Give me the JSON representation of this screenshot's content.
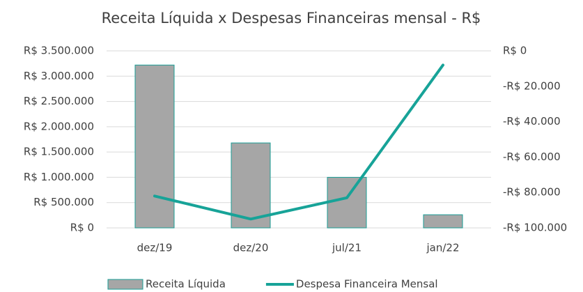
{
  "chart_data": {
    "type": "bar",
    "title": "Receita Líquida x Despesas Financeiras  mensal - R$",
    "categories": [
      "dez/19",
      "dez/20",
      "jul/21",
      "jan/22"
    ],
    "series": [
      {
        "name": "Receita Líquida",
        "type": "bar",
        "color": "#a6a6a6",
        "edgecolor": "#1a9e96",
        "values": [
          3220000,
          1680000,
          1000000,
          260000
        ]
      },
      {
        "name": "Despesa Financeira Mensal",
        "type": "line",
        "color": "#17a398",
        "axis": "y2",
        "values": [
          -82000,
          -95000,
          -83000,
          -8000
        ]
      }
    ],
    "ylim": [
      0,
      3500000
    ],
    "yticks": [
      {
        "value": 0,
        "label": "R$ 0"
      },
      {
        "value": 500000,
        "label": "R$ 500.000"
      },
      {
        "value": 1000000,
        "label": "R$ 1.000.000"
      },
      {
        "value": 1500000,
        "label": "R$ 1.500.000"
      },
      {
        "value": 2000000,
        "label": "R$ 2.000.000"
      },
      {
        "value": 2500000,
        "label": "R$ 2.500.000"
      },
      {
        "value": 3000000,
        "label": "R$ 3.000.000"
      },
      {
        "value": 3500000,
        "label": "R$ 3.500.000"
      }
    ],
    "y2lim": [
      -100000,
      0
    ],
    "y2ticks": [
      {
        "value": -100000,
        "label": "-R$ 100.000"
      },
      {
        "value": -80000,
        "label": "-R$ 80.000"
      },
      {
        "value": -60000,
        "label": "-R$ 60.000"
      },
      {
        "value": -40000,
        "label": "-R$ 40.000"
      },
      {
        "value": -20000,
        "label": "-R$ 20.000"
      },
      {
        "value": 0,
        "label": "R$ 0"
      }
    ],
    "grid": true,
    "legend": "bottom"
  }
}
